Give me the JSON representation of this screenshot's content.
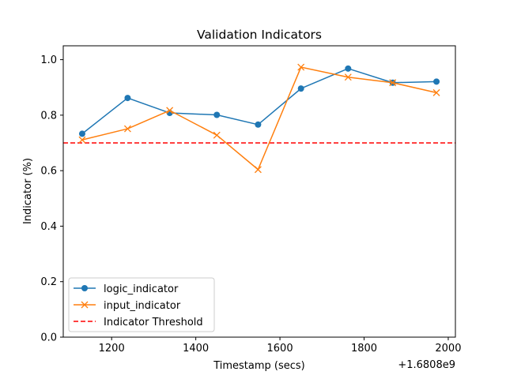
{
  "chart_data": {
    "type": "line",
    "title": "Validation Indicators",
    "xlabel": "Timestamp (secs)",
    "ylabel": "Indicator (%)",
    "x_offset_label": "+1.6808e9",
    "x": [
      1130,
      1238,
      1338,
      1450,
      1548,
      1650,
      1762,
      1868,
      1972
    ],
    "x_ticks": [
      1200,
      1400,
      1600,
      1800,
      2000
    ],
    "x_tick_labels": [
      "1200",
      "1400",
      "1600",
      "1800",
      "2000"
    ],
    "y_ticks": [
      0.0,
      0.2,
      0.4,
      0.6,
      0.8,
      1.0
    ],
    "y_tick_labels": [
      "0.0",
      "0.2",
      "0.4",
      "0.6",
      "0.8",
      "1.0"
    ],
    "xlim": [
      1085,
      2017
    ],
    "ylim": [
      0.0,
      1.05
    ],
    "grid": false,
    "legend_position": "lower-left",
    "series": [
      {
        "name": "logic_indicator",
        "color": "#1f77b4",
        "marker": "circle",
        "values": [
          0.733,
          0.862,
          0.808,
          0.801,
          0.766,
          0.896,
          0.968,
          0.917,
          0.921
        ]
      },
      {
        "name": "input_indicator",
        "color": "#ff7f0e",
        "marker": "x",
        "values": [
          0.711,
          0.751,
          0.817,
          0.728,
          0.604,
          0.973,
          0.937,
          0.917,
          0.881
        ]
      }
    ],
    "threshold": {
      "name": "Indicator Threshold",
      "value": 0.7,
      "color": "#ff0000",
      "style": "dashed"
    }
  }
}
